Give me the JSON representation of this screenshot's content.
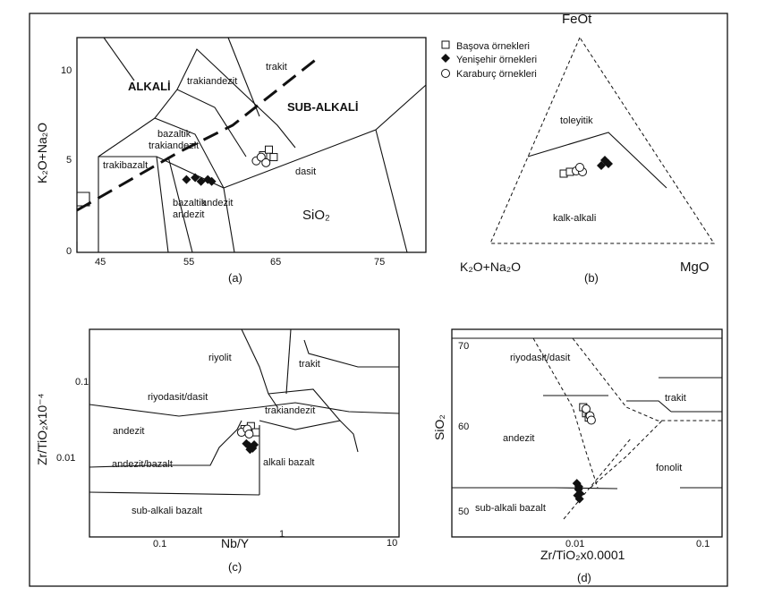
{
  "panels": {
    "a": {
      "caption": "(a)",
      "xticks": [
        "45",
        "55",
        "65",
        "75"
      ],
      "yticks": [
        "0",
        "5",
        "10"
      ],
      "ylabel": "K₂O+Na₂O",
      "xlabel": "SiO₂",
      "fields": {
        "alkali": "ALKALİ",
        "subalkali": "SUB-ALKALİ",
        "trakit": "trakit",
        "trakiandezit": "trakiandezit",
        "bazaltik_trakiandezit_1": "bazaltik",
        "bazaltik_trakiandezit_2": "trakiandezit",
        "trakibazalt": "trakibazalt",
        "dasit": "dasit",
        "bazaltik_andezit_1": "bazaltik",
        "bazaltik_andezit_2": "andezit",
        "andezit": "andezit"
      }
    },
    "b": {
      "caption": "(b)",
      "apex_top": "FeOt",
      "apex_left": "K₂O+Na₂O",
      "apex_right": "MgO",
      "fields": {
        "toleyitik": "toleyitik",
        "kalkalkali": "kalk-alkali"
      }
    },
    "c": {
      "caption": "(c)",
      "xticks": [
        "0.1",
        "1",
        "10"
      ],
      "yticks": [
        "0.1",
        "0.01"
      ],
      "xlabel": "Nb/Y",
      "ylabel": "Zr/TiO₂x10⁻⁴",
      "fields": {
        "riyolit": "riyolit",
        "trakit": "trakit",
        "riyodasit": "riyodasit/dasit",
        "trakiandezit": "trakiandezit",
        "andezit": "andezit",
        "andezitbazalt": "andezit/bazalt",
        "alkalibazalt": "alkali bazalt",
        "subalkalibazalt": "sub-alkali bazalt"
      }
    },
    "d": {
      "caption": "(d)",
      "xticks": [
        "0.01",
        "0.1"
      ],
      "yticks": [
        "70",
        "60",
        "50"
      ],
      "xlabel": "Zr/TiO₂x0.0001",
      "ylabel": "SiO₂",
      "fields": {
        "riyodasit": "riyodasit/dasit",
        "trakit": "trakit",
        "andezit": "andezit",
        "fonolit": "fonolit",
        "subalkalibazalt": "sub-alkali bazalt"
      }
    }
  },
  "legend": {
    "items": [
      {
        "label": "Başova örnekleri",
        "marker": "square-open"
      },
      {
        "label": "Yenişehir örnekleri",
        "marker": "diamond-filled"
      },
      {
        "label": "Karaburç örnekleri",
        "marker": "circle-open"
      }
    ]
  },
  "chart_data": [
    {
      "type": "scatter",
      "panel": "a",
      "xlim": [
        42,
        78
      ],
      "ylim": [
        0,
        11.5
      ],
      "series": [
        {
          "name": "Başova örnekleri",
          "x": [
            61.2,
            61.8,
            62.3
          ],
          "y": [
            5.2,
            5.5,
            5.1
          ]
        },
        {
          "name": "Yenişehir örnekleri",
          "x": [
            53.3,
            54.2,
            54.8,
            55.5,
            55.9
          ],
          "y": [
            3.9,
            4.0,
            3.8,
            3.9,
            3.8
          ]
        },
        {
          "name": "Karaburç örnekleri",
          "x": [
            60.5,
            61.0,
            61.5
          ],
          "y": [
            4.9,
            5.1,
            4.8
          ]
        }
      ]
    },
    {
      "type": "scatter",
      "panel": "c",
      "xlim": [
        0.03,
        10
      ],
      "ylim": [
        0.002,
        0.3
      ],
      "scale": "log",
      "series": [
        {
          "name": "Başova örnekleri",
          "x": [
            0.55,
            0.62,
            0.68
          ],
          "y": [
            0.027,
            0.029,
            0.025
          ]
        },
        {
          "name": "Yenişehir örnekleri",
          "x": [
            0.57,
            0.6,
            0.64,
            0.66,
            0.61
          ],
          "y": [
            0.019,
            0.018,
            0.017,
            0.0185,
            0.0165
          ]
        },
        {
          "name": "Karaburç örnekleri",
          "x": [
            0.52,
            0.58,
            0.6
          ],
          "y": [
            0.025,
            0.027,
            0.024
          ]
        }
      ]
    },
    {
      "type": "scatter",
      "panel": "d",
      "xlim": [
        0.001,
        0.3
      ],
      "ylim": [
        48,
        72
      ],
      "xscale": "log",
      "series": [
        {
          "name": "Başova örnekleri",
          "x": [
            0.016,
            0.017,
            0.018
          ],
          "y": [
            63.0,
            62.3,
            61.8
          ]
        },
        {
          "name": "Yenişehir örnekleri",
          "x": [
            0.014,
            0.0145,
            0.015,
            0.0148,
            0.0142,
            0.0146
          ],
          "y": [
            54.2,
            53.5,
            53.0,
            52.4,
            52.8,
            53.8
          ]
        },
        {
          "name": "Karaburç örnekleri",
          "x": [
            0.017,
            0.0185,
            0.019
          ],
          "y": [
            62.8,
            62.0,
            61.5
          ]
        }
      ]
    }
  ]
}
